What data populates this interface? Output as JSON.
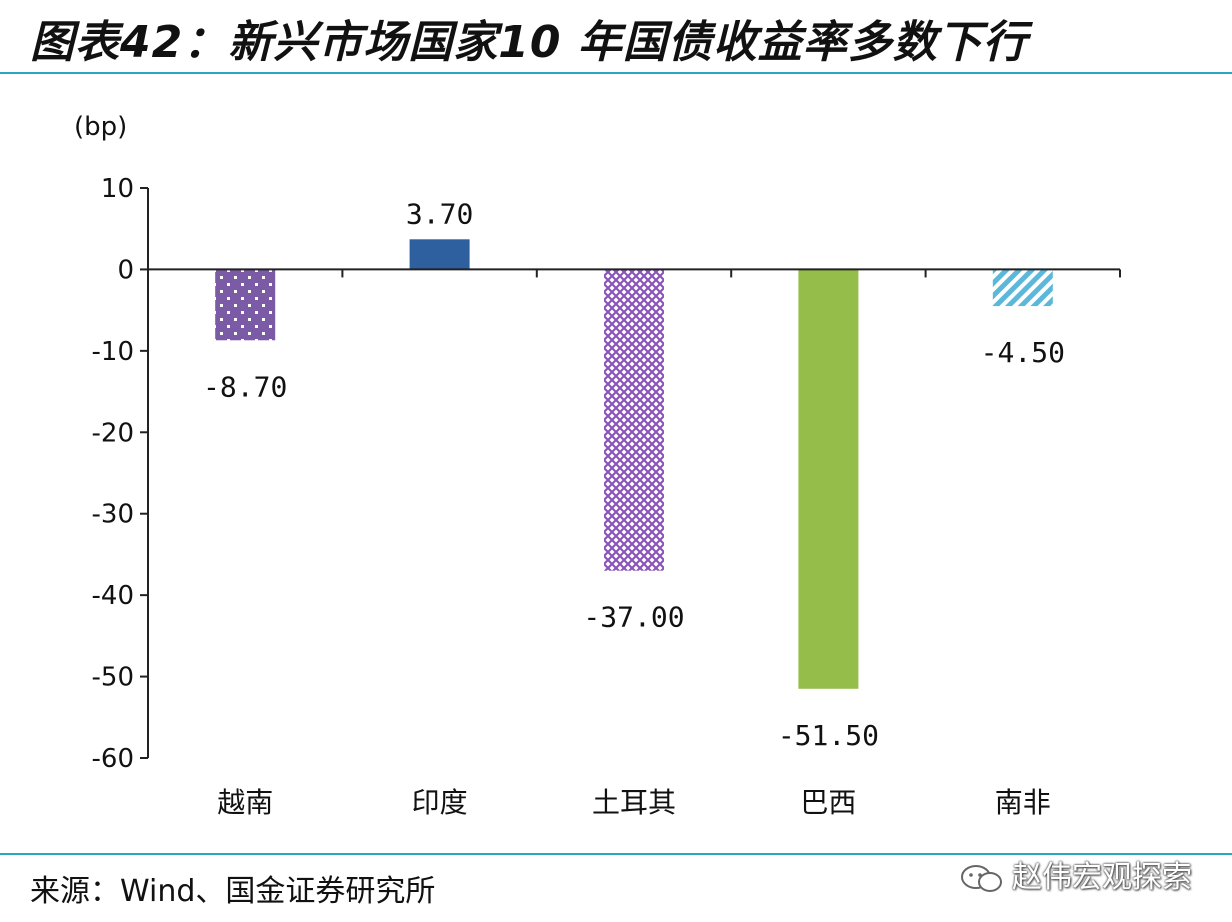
{
  "title": "图表42：新兴市场国家10 年国债收益率多数下行",
  "source": "来源：Wind、国金证券研究所",
  "watermark": "赵伟宏观探索",
  "chart_data": {
    "type": "bar",
    "unit_label": "(bp)",
    "categories": [
      "越南",
      "印度",
      "土耳其",
      "巴西",
      "南非"
    ],
    "values": [
      -8.7,
      3.7,
      -37.0,
      -51.5,
      -4.5
    ],
    "value_labels": [
      "-8.70",
      "3.70",
      "-37.00",
      "-51.50",
      "-4.50"
    ],
    "ylim": [
      -60,
      10
    ],
    "yticks": [
      10,
      0,
      -10,
      -20,
      -30,
      -40,
      -50,
      -60
    ],
    "grid": false,
    "legend": "none",
    "bar_styles": [
      {
        "pattern": "dots",
        "color": "#7b5aa6"
      },
      {
        "pattern": "solid",
        "color": "#2e5f9e"
      },
      {
        "pattern": "crosshatch",
        "color": "#8a55b8"
      },
      {
        "pattern": "solid",
        "color": "#95bd4a"
      },
      {
        "pattern": "diagonal",
        "color": "#5cb8d8"
      }
    ]
  }
}
